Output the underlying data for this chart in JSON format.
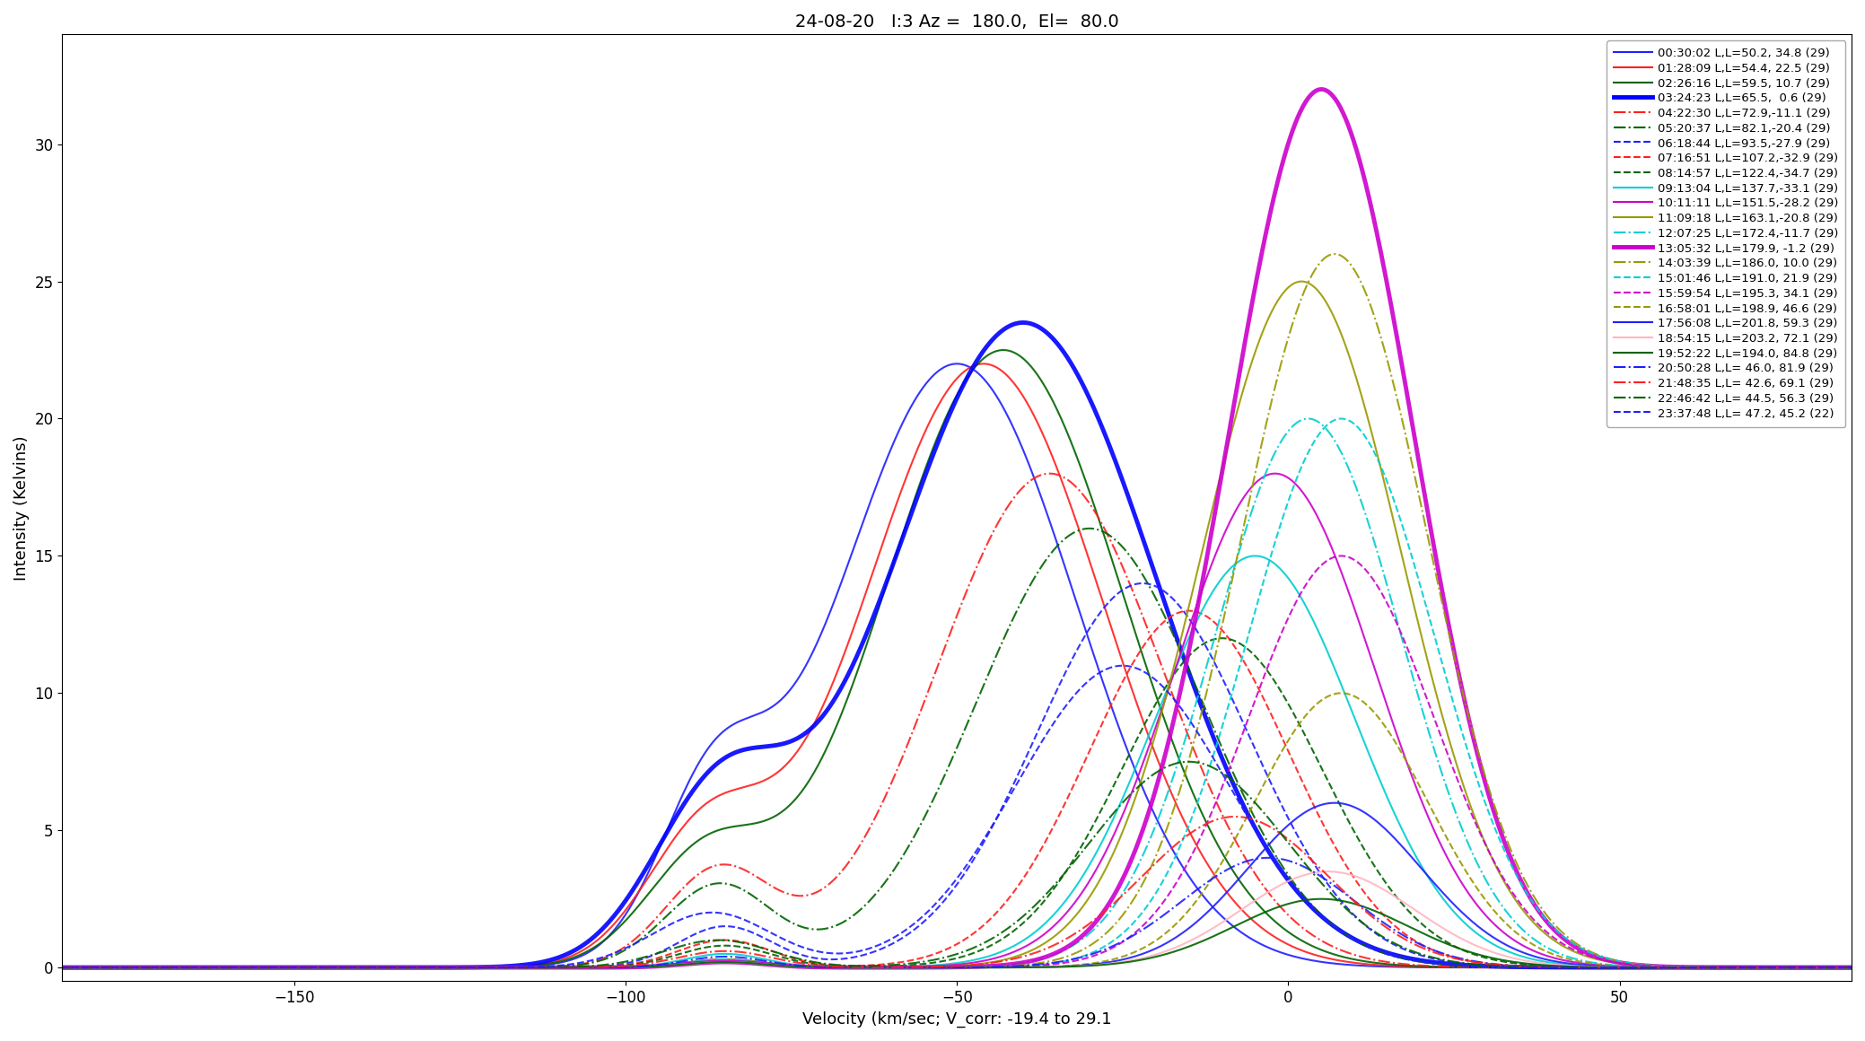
{
  "title": "24-08-20   I:3 Az =  180.0,  El=  80.0",
  "xlabel": "Velocity (km/sec; V_corr: -19.4 to 29.1",
  "ylabel": "Intensity (Kelvins)",
  "xlim": [
    -185,
    85
  ],
  "ylim": [
    -0.5,
    34
  ],
  "series": [
    {
      "time": "00:30:02",
      "L": "50.2",
      "B": " 34.8",
      "n": 29,
      "color": "#1f1fff",
      "lw": 1.5,
      "ls": "-",
      "components": [
        {
          "peak": 22.0,
          "vc": -50.0,
          "sig": 18.0
        },
        {
          "peak": 5.5,
          "vc": -87.0,
          "sig": 8.0
        }
      ]
    },
    {
      "time": "01:28:09",
      "L": "54.4",
      "B": " 22.5",
      "n": 29,
      "color": "#ff2020",
      "lw": 1.5,
      "ls": "-",
      "components": [
        {
          "peak": 22.0,
          "vc": -46.0,
          "sig": 18.0
        },
        {
          "peak": 4.5,
          "vc": -88.0,
          "sig": 9.0
        }
      ]
    },
    {
      "time": "02:26:16",
      "L": "59.5",
      "B": " 10.7",
      "n": 29,
      "color": "#006400",
      "lw": 1.5,
      "ls": "-",
      "components": [
        {
          "peak": 22.5,
          "vc": -43.0,
          "sig": 18.0
        },
        {
          "peak": 3.8,
          "vc": -88.0,
          "sig": 9.0
        }
      ]
    },
    {
      "time": "03:24:23",
      "L": "65.5",
      "B": "  0.6",
      "n": 29,
      "color": "#0000ff",
      "lw": 3.5,
      "ls": "-",
      "components": [
        {
          "peak": 23.5,
          "vc": -40.0,
          "sig": 20.0
        },
        {
          "peak": 5.8,
          "vc": -86.0,
          "sig": 10.0
        }
      ]
    },
    {
      "time": "04:22:30",
      "L": "72.9",
      "B": "-11.1",
      "n": 29,
      "color": "#ff2020",
      "lw": 1.5,
      "ls": "-.",
      "components": [
        {
          "peak": 18.0,
          "vc": -36.0,
          "sig": 17.0
        },
        {
          "peak": 3.5,
          "vc": -86.0,
          "sig": 8.0
        }
      ]
    },
    {
      "time": "05:20:37",
      "L": "82.1",
      "B": "-20.4",
      "n": 29,
      "color": "#006400",
      "lw": 1.5,
      "ls": "-.",
      "components": [
        {
          "peak": 16.0,
          "vc": -30.0,
          "sig": 17.0
        },
        {
          "peak": 3.0,
          "vc": -86.0,
          "sig": 8.0
        }
      ]
    },
    {
      "time": "06:18:44",
      "L": "93.5",
      "B": "-27.9",
      "n": 29,
      "color": "#1f1fff",
      "lw": 1.5,
      "ls": "--",
      "components": [
        {
          "peak": 14.0,
          "vc": -22.0,
          "sig": 16.0
        },
        {
          "peak": 1.5,
          "vc": -85.0,
          "sig": 7.0
        }
      ]
    },
    {
      "time": "07:16:51",
      "L": "107.2",
      "B": "-32.9",
      "n": 29,
      "color": "#ff2020",
      "lw": 1.5,
      "ls": "--",
      "components": [
        {
          "peak": 13.0,
          "vc": -15.0,
          "sig": 15.0
        },
        {
          "peak": 1.0,
          "vc": -85.0,
          "sig": 7.0
        }
      ]
    },
    {
      "time": "08:14:57",
      "L": "122.4",
      "B": "-34.7",
      "n": 29,
      "color": "#006400",
      "lw": 1.5,
      "ls": "--",
      "components": [
        {
          "peak": 12.0,
          "vc": -10.0,
          "sig": 15.0
        },
        {
          "peak": 0.8,
          "vc": -85.0,
          "sig": 7.0
        }
      ]
    },
    {
      "time": "09:13:04",
      "L": "137.7",
      "B": "-33.1",
      "n": 29,
      "color": "#00ced1",
      "lw": 1.5,
      "ls": "-",
      "components": [
        {
          "peak": 15.0,
          "vc": -5.0,
          "sig": 15.0
        },
        {
          "peak": 0.5,
          "vc": -85.0,
          "sig": 6.0
        }
      ]
    },
    {
      "time": "10:11:11",
      "L": "151.5",
      "B": "-28.2",
      "n": 29,
      "color": "#cc00cc",
      "lw": 1.5,
      "ls": "-",
      "components": [
        {
          "peak": 18.0,
          "vc": -2.0,
          "sig": 15.0
        },
        {
          "peak": 0.3,
          "vc": -85.0,
          "sig": 6.0
        }
      ]
    },
    {
      "time": "11:09:18",
      "L": "163.1",
      "B": "-20.8",
      "n": 29,
      "color": "#999900",
      "lw": 1.5,
      "ls": "-",
      "components": [
        {
          "peak": 25.0,
          "vc": 2.0,
          "sig": 15.0
        },
        {
          "peak": 0.3,
          "vc": -85.0,
          "sig": 6.0
        }
      ]
    },
    {
      "time": "12:07:25",
      "L": "172.4",
      "B": "-11.7",
      "n": 29,
      "color": "#00ced1",
      "lw": 1.5,
      "ls": "-.",
      "components": [
        {
          "peak": 20.0,
          "vc": 3.0,
          "sig": 14.0
        },
        {
          "peak": 0.3,
          "vc": -85.0,
          "sig": 6.0
        }
      ]
    },
    {
      "time": "13:05:32",
      "L": "179.9",
      "B": " -1.2",
      "n": 29,
      "color": "#cc00cc",
      "lw": 3.5,
      "ls": "-",
      "components": [
        {
          "peak": 32.0,
          "vc": 5.0,
          "sig": 14.0
        },
        {
          "peak": 0.2,
          "vc": -85.0,
          "sig": 6.0
        }
      ]
    },
    {
      "time": "14:03:39",
      "L": "186.0",
      "B": " 10.0",
      "n": 29,
      "color": "#999900",
      "lw": 1.5,
      "ls": "-.",
      "components": [
        {
          "peak": 26.0,
          "vc": 7.0,
          "sig": 14.0
        },
        {
          "peak": 0.2,
          "vc": -85.0,
          "sig": 6.0
        }
      ]
    },
    {
      "time": "15:01:46",
      "L": "191.0",
      "B": " 21.9",
      "n": 29,
      "color": "#00ced1",
      "lw": 1.5,
      "ls": "--",
      "components": [
        {
          "peak": 20.0,
          "vc": 8.0,
          "sig": 14.0
        },
        {
          "peak": 0.2,
          "vc": -85.0,
          "sig": 6.0
        }
      ]
    },
    {
      "time": "15:59:54",
      "L": "195.3",
      "B": " 34.1",
      "n": 29,
      "color": "#cc00cc",
      "lw": 1.5,
      "ls": "--",
      "components": [
        {
          "peak": 15.0,
          "vc": 8.0,
          "sig": 14.0
        },
        {
          "peak": 0.2,
          "vc": -85.0,
          "sig": 6.0
        }
      ]
    },
    {
      "time": "16:58:01",
      "L": "198.9",
      "B": " 46.6",
      "n": 29,
      "color": "#999900",
      "lw": 1.5,
      "ls": "--",
      "components": [
        {
          "peak": 10.0,
          "vc": 8.0,
          "sig": 13.0
        },
        {
          "peak": 0.2,
          "vc": -85.0,
          "sig": 6.0
        }
      ]
    },
    {
      "time": "17:56:08",
      "L": "201.8",
      "B": " 59.3",
      "n": 29,
      "color": "#1f1fff",
      "lw": 1.5,
      "ls": "-",
      "components": [
        {
          "peak": 6.0,
          "vc": 7.0,
          "sig": 13.0
        },
        {
          "peak": 0.2,
          "vc": -85.0,
          "sig": 6.0
        }
      ]
    },
    {
      "time": "18:54:15",
      "L": "203.2",
      "B": " 72.1",
      "n": 29,
      "color": "#ffb6c1",
      "lw": 1.5,
      "ls": "-",
      "components": [
        {
          "peak": 3.5,
          "vc": 6.0,
          "sig": 13.0
        },
        {
          "peak": 0.2,
          "vc": -85.0,
          "sig": 6.0
        }
      ]
    },
    {
      "time": "19:52:22",
      "L": "194.0",
      "B": " 84.8",
      "n": 29,
      "color": "#006400",
      "lw": 1.5,
      "ls": "-",
      "components": [
        {
          "peak": 2.5,
          "vc": 5.0,
          "sig": 13.0
        },
        {
          "peak": 0.2,
          "vc": -85.0,
          "sig": 6.0
        }
      ]
    },
    {
      "time": "20:50:28",
      "L": " 46.0",
      "B": " 81.9",
      "n": 29,
      "color": "#1f1fff",
      "lw": 1.5,
      "ls": "-.",
      "components": [
        {
          "peak": 4.0,
          "vc": -3.0,
          "sig": 13.0
        },
        {
          "peak": 0.4,
          "vc": -85.0,
          "sig": 6.0
        }
      ]
    },
    {
      "time": "21:48:35",
      "L": " 42.6",
      "B": " 69.1",
      "n": 29,
      "color": "#ff2020",
      "lw": 1.5,
      "ls": "-.",
      "components": [
        {
          "peak": 5.5,
          "vc": -8.0,
          "sig": 14.0
        },
        {
          "peak": 0.6,
          "vc": -85.0,
          "sig": 7.0
        }
      ]
    },
    {
      "time": "22:46:42",
      "L": " 44.5",
      "B": " 56.3",
      "n": 29,
      "color": "#006400",
      "lw": 1.5,
      "ls": "-.",
      "components": [
        {
          "peak": 7.5,
          "vc": -15.0,
          "sig": 15.0
        },
        {
          "peak": 1.0,
          "vc": -86.0,
          "sig": 8.0
        }
      ]
    },
    {
      "time": "23:37:48",
      "L": " 47.2",
      "B": " 45.2",
      "n": 22,
      "color": "#1f1fff",
      "lw": 1.5,
      "ls": "--",
      "components": [
        {
          "peak": 11.0,
          "vc": -25.0,
          "sig": 16.0
        },
        {
          "peak": 2.0,
          "vc": -87.0,
          "sig": 9.0
        }
      ]
    }
  ]
}
